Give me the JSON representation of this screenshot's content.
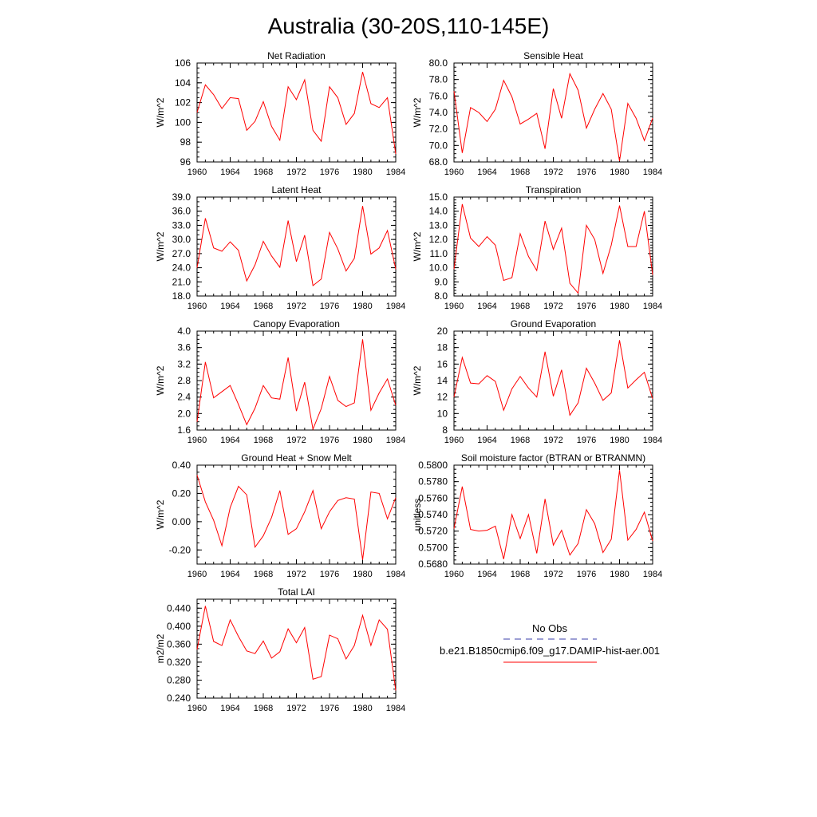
{
  "figure": {
    "title": "Australia (30-20S,110-145E)",
    "legend": {
      "items": [
        {
          "label": "No Obs",
          "color": "#3b3fa8",
          "style": "dashed"
        },
        {
          "label": "b.e21.B1850cmip6.f09_g17.DAMIP-hist-aer.001",
          "color": "#ff0000",
          "style": "solid"
        }
      ]
    }
  },
  "chart_data": [
    {
      "type": "line",
      "title": "Net Radiation",
      "ylabel": "W/m^2",
      "xlim": [
        1960,
        1984
      ],
      "ylim": [
        96,
        106
      ],
      "xticks": [
        1960,
        1964,
        1968,
        1972,
        1976,
        1980,
        1984
      ],
      "yticks": [
        96,
        98,
        100,
        102,
        104,
        106
      ],
      "ydecimals": 0,
      "yminor": 0.5,
      "grid": false,
      "series": [
        {
          "color": "#ff0000",
          "x": [
            1960,
            1961,
            1962,
            1963,
            1964,
            1965,
            1966,
            1967,
            1968,
            1969,
            1970,
            1971,
            1972,
            1973,
            1974,
            1975,
            1976,
            1977,
            1978,
            1979,
            1980,
            1981,
            1982,
            1983,
            1984
          ],
          "values": [
            101.0,
            103.8,
            102.8,
            101.4,
            102.5,
            102.4,
            99.2,
            100.1,
            102.1,
            99.6,
            98.2,
            103.6,
            102.3,
            104.3,
            99.2,
            98.1,
            103.6,
            102.5,
            99.8,
            100.9,
            105.1,
            101.9,
            101.5,
            102.5,
            96.8
          ]
        }
      ]
    },
    {
      "type": "line",
      "title": "Sensible Heat",
      "ylabel": "W/m^2",
      "xlim": [
        1960,
        1984
      ],
      "ylim": [
        68,
        80
      ],
      "xticks": [
        1960,
        1964,
        1968,
        1972,
        1976,
        1980,
        1984
      ],
      "yticks": [
        68,
        70,
        72,
        74,
        76,
        78,
        80
      ],
      "ydecimals": 1,
      "yminor": 0.5,
      "grid": false,
      "series": [
        {
          "color": "#ff0000",
          "x": [
            1960,
            1961,
            1962,
            1963,
            1964,
            1965,
            1966,
            1967,
            1968,
            1969,
            1970,
            1971,
            1972,
            1973,
            1974,
            1975,
            1976,
            1977,
            1978,
            1979,
            1980,
            1981,
            1982,
            1983,
            1984
          ],
          "values": [
            76.6,
            69.1,
            74.6,
            74.0,
            72.9,
            74.4,
            77.9,
            75.9,
            72.6,
            73.2,
            73.9,
            69.6,
            76.9,
            73.3,
            78.7,
            76.7,
            72.1,
            74.4,
            76.3,
            74.4,
            68.1,
            75.1,
            73.3,
            70.6,
            73.3
          ]
        }
      ]
    },
    {
      "type": "line",
      "title": "Latent Heat",
      "ylabel": "W/m^2",
      "xlim": [
        1960,
        1984
      ],
      "ylim": [
        18,
        39
      ],
      "xticks": [
        1960,
        1964,
        1968,
        1972,
        1976,
        1980,
        1984
      ],
      "yticks": [
        18,
        21,
        24,
        27,
        30,
        33,
        36,
        39
      ],
      "ydecimals": 1,
      "yminor": 1,
      "grid": false,
      "series": [
        {
          "color": "#ff0000",
          "x": [
            1960,
            1961,
            1962,
            1963,
            1964,
            1965,
            1966,
            1967,
            1968,
            1969,
            1970,
            1971,
            1972,
            1973,
            1974,
            1975,
            1976,
            1977,
            1978,
            1979,
            1980,
            1981,
            1982,
            1983,
            1984
          ],
          "values": [
            24.0,
            34.5,
            28.2,
            27.5,
            29.5,
            27.7,
            21.2,
            24.6,
            29.6,
            26.5,
            24.1,
            34.0,
            25.3,
            30.9,
            20.2,
            21.6,
            31.5,
            28.0,
            23.3,
            26.0,
            37.1,
            26.9,
            28.2,
            31.9,
            23.7
          ]
        }
      ]
    },
    {
      "type": "line",
      "title": "Transpiration",
      "ylabel": "W/m^2",
      "xlim": [
        1960,
        1984
      ],
      "ylim": [
        8,
        15
      ],
      "xticks": [
        1960,
        1964,
        1968,
        1972,
        1976,
        1980,
        1984
      ],
      "yticks": [
        8,
        9,
        10,
        11,
        12,
        13,
        14,
        15
      ],
      "ydecimals": 1,
      "yminor": 0.2,
      "grid": false,
      "series": [
        {
          "color": "#ff0000",
          "x": [
            1960,
            1961,
            1962,
            1963,
            1964,
            1965,
            1966,
            1967,
            1968,
            1969,
            1970,
            1971,
            1972,
            1973,
            1974,
            1975,
            1976,
            1977,
            1978,
            1979,
            1980,
            1981,
            1982,
            1983,
            1984
          ],
          "values": [
            9.9,
            14.5,
            12.1,
            11.5,
            12.2,
            11.6,
            9.1,
            9.3,
            12.4,
            10.8,
            9.8,
            13.3,
            11.3,
            12.8,
            8.9,
            8.2,
            13.0,
            12.0,
            9.6,
            11.6,
            14.4,
            11.5,
            11.5,
            14.0,
            9.5
          ]
        }
      ]
    },
    {
      "type": "line",
      "title": "Canopy Evaporation",
      "ylabel": "W/m^2",
      "xlim": [
        1960,
        1984
      ],
      "ylim": [
        1.6,
        4.0
      ],
      "xticks": [
        1960,
        1964,
        1968,
        1972,
        1976,
        1980,
        1984
      ],
      "yticks": [
        1.6,
        2.0,
        2.4,
        2.8,
        3.2,
        3.6,
        4.0
      ],
      "ydecimals": 1,
      "yminor": 0.1,
      "grid": false,
      "series": [
        {
          "color": "#ff0000",
          "x": [
            1960,
            1961,
            1962,
            1963,
            1964,
            1965,
            1966,
            1967,
            1968,
            1969,
            1970,
            1971,
            1972,
            1973,
            1974,
            1975,
            1976,
            1977,
            1978,
            1979,
            1980,
            1981,
            1982,
            1983,
            1984
          ],
          "values": [
            1.8,
            3.25,
            2.38,
            2.53,
            2.68,
            2.22,
            1.73,
            2.13,
            2.68,
            2.38,
            2.35,
            3.36,
            2.06,
            2.76,
            1.62,
            2.12,
            2.9,
            2.32,
            2.17,
            2.26,
            3.8,
            2.08,
            2.5,
            2.84,
            2.2
          ]
        }
      ]
    },
    {
      "type": "line",
      "title": "Ground Evaporation",
      "ylabel": "W/m^2",
      "xlim": [
        1960,
        1984
      ],
      "ylim": [
        8,
        20
      ],
      "xticks": [
        1960,
        1964,
        1968,
        1972,
        1976,
        1980,
        1984
      ],
      "yticks": [
        8,
        10,
        12,
        14,
        16,
        18,
        20
      ],
      "ydecimals": 0,
      "yminor": 0.5,
      "grid": false,
      "series": [
        {
          "color": "#ff0000",
          "x": [
            1960,
            1961,
            1962,
            1963,
            1964,
            1965,
            1966,
            1967,
            1968,
            1969,
            1970,
            1971,
            1972,
            1973,
            1974,
            1975,
            1976,
            1977,
            1978,
            1979,
            1980,
            1981,
            1982,
            1983,
            1984
          ],
          "values": [
            12.0,
            16.8,
            13.7,
            13.6,
            14.6,
            13.9,
            10.4,
            13.0,
            14.5,
            13.1,
            12.0,
            17.5,
            12.1,
            15.3,
            9.8,
            11.3,
            15.5,
            13.7,
            11.6,
            12.5,
            18.9,
            13.1,
            14.1,
            15.0,
            11.8
          ]
        }
      ]
    },
    {
      "type": "line",
      "title": "Ground Heat + Snow Melt",
      "ylabel": "W/m^2",
      "xlim": [
        1960,
        1984
      ],
      "ylim": [
        -0.3,
        0.4
      ],
      "xticks": [
        1960,
        1964,
        1968,
        1972,
        1976,
        1980,
        1984
      ],
      "yticks": [
        -0.2,
        0.0,
        0.2,
        0.4
      ],
      "ydecimals": 2,
      "yminor": 0.05,
      "grid": false,
      "series": [
        {
          "color": "#ff0000",
          "x": [
            1960,
            1961,
            1962,
            1963,
            1964,
            1965,
            1966,
            1967,
            1968,
            1969,
            1970,
            1971,
            1972,
            1973,
            1974,
            1975,
            1976,
            1977,
            1978,
            1979,
            1980,
            1981,
            1982,
            1983,
            1984
          ],
          "values": [
            0.33,
            0.14,
            0.01,
            -0.17,
            0.1,
            0.25,
            0.19,
            -0.18,
            -0.1,
            0.03,
            0.22,
            -0.09,
            -0.05,
            0.07,
            0.22,
            -0.05,
            0.07,
            0.15,
            0.17,
            0.16,
            -0.27,
            0.21,
            0.2,
            0.02,
            0.17
          ]
        }
      ]
    },
    {
      "type": "line",
      "title": "Soil moisture factor (BTRAN or BTRANMN)",
      "ylabel": "unitless",
      "xlim": [
        1960,
        1984
      ],
      "ylim": [
        0.568,
        0.58
      ],
      "xticks": [
        1960,
        1964,
        1968,
        1972,
        1976,
        1980,
        1984
      ],
      "yticks": [
        0.568,
        0.57,
        0.572,
        0.574,
        0.576,
        0.578,
        0.58
      ],
      "ydecimals": 4,
      "yminor": 0.0005,
      "grid": false,
      "series": [
        {
          "color": "#ff0000",
          "x": [
            1960,
            1961,
            1962,
            1963,
            1964,
            1965,
            1966,
            1967,
            1968,
            1969,
            1970,
            1971,
            1972,
            1973,
            1974,
            1975,
            1976,
            1977,
            1978,
            1979,
            1980,
            1981,
            1982,
            1983,
            1984
          ],
          "values": [
            0.5723,
            0.5774,
            0.5722,
            0.572,
            0.5721,
            0.5726,
            0.5686,
            0.574,
            0.5711,
            0.574,
            0.5693,
            0.5759,
            0.5703,
            0.5721,
            0.5691,
            0.5705,
            0.5746,
            0.5729,
            0.5694,
            0.571,
            0.5794,
            0.5709,
            0.5722,
            0.5743,
            0.5708
          ]
        }
      ]
    },
    {
      "type": "line",
      "title": "Total LAI",
      "ylabel": "m2/m2",
      "xlim": [
        1960,
        1984
      ],
      "ylim": [
        0.24,
        0.46
      ],
      "xticks": [
        1960,
        1964,
        1968,
        1972,
        1976,
        1980,
        1984
      ],
      "yticks": [
        0.24,
        0.28,
        0.32,
        0.36,
        0.4,
        0.44
      ],
      "ydecimals": 3,
      "yminor": 0.01,
      "grid": false,
      "series": [
        {
          "color": "#ff0000",
          "x": [
            1960,
            1961,
            1962,
            1963,
            1964,
            1965,
            1966,
            1967,
            1968,
            1969,
            1970,
            1971,
            1972,
            1973,
            1974,
            1975,
            1976,
            1977,
            1978,
            1979,
            1980,
            1981,
            1982,
            1983,
            1984
          ],
          "values": [
            0.348,
            0.445,
            0.366,
            0.357,
            0.414,
            0.377,
            0.345,
            0.339,
            0.367,
            0.329,
            0.343,
            0.394,
            0.363,
            0.397,
            0.282,
            0.288,
            0.38,
            0.372,
            0.327,
            0.357,
            0.424,
            0.357,
            0.414,
            0.393,
            0.257
          ]
        }
      ]
    }
  ]
}
